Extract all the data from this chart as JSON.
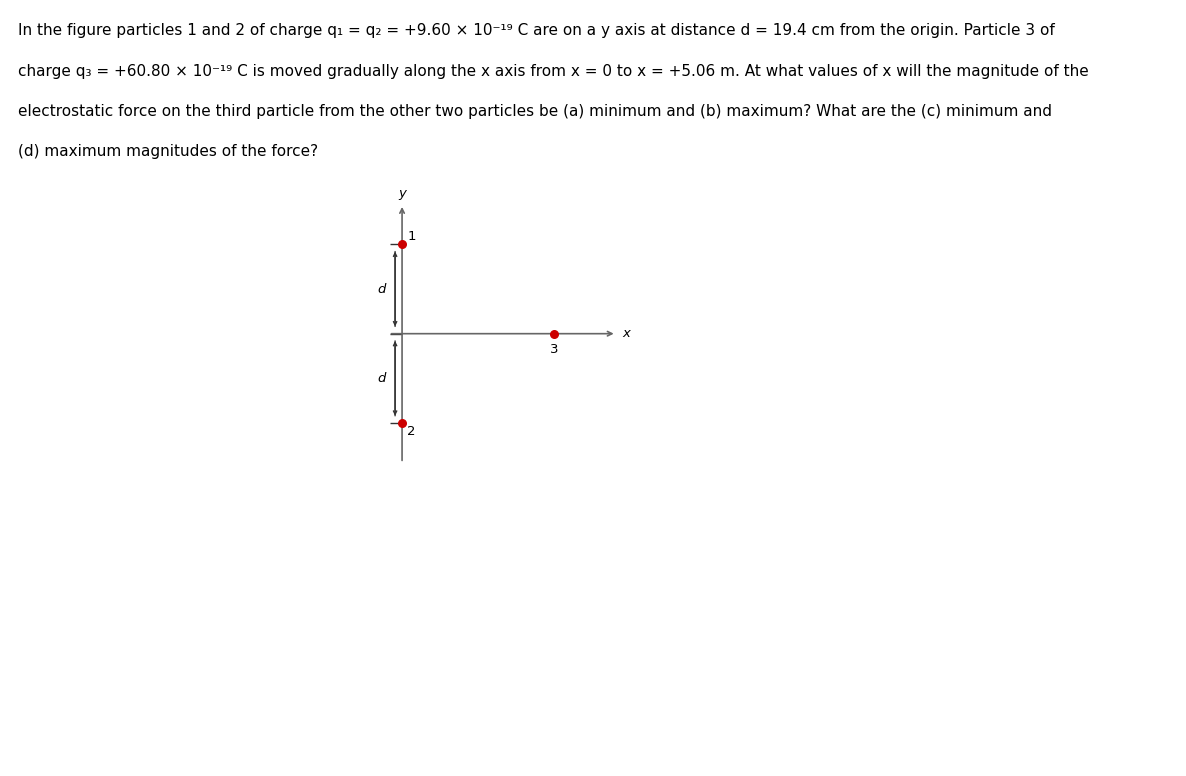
{
  "particle_color": "#cc0000",
  "axis_color": "#666666",
  "text_color": "#000000",
  "arrow_color": "#333333",
  "fig_bg": "#ffffff",
  "font_size_text": 11.0,
  "font_size_diagram": 9.5,
  "line1": "In the figure particles 1 and 2 of charge q₁ = q₂ = +9.60 × 10⁻¹⁹ C are on a y axis at distance d = 19.4 cm from the origin. Particle 3 of",
  "line2": "charge q₃ = +60.80 × 10⁻¹⁹ C is moved gradually along the x axis from x = 0 to x = +5.06 m. At what values of x will the magnitude of the",
  "line3": "electrostatic force on the third particle from the other two particles be (a) minimum and (b) maximum? What are the (c) minimum and",
  "line4": "(d) maximum magnitudes of the force?",
  "p1_label": "1",
  "p2_label": "2",
  "p3_label": "3",
  "x_label": "x",
  "y_label": "y",
  "d_label": "d"
}
